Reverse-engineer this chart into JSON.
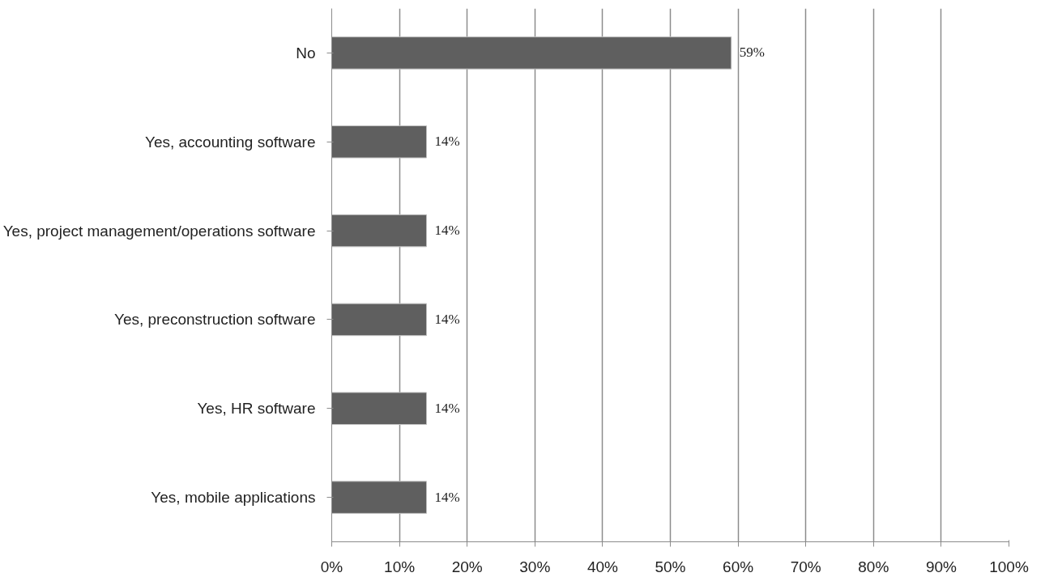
{
  "chart_data": {
    "type": "bar",
    "orientation": "horizontal",
    "categories": [
      "No",
      "Yes, accounting software",
      "Yes, project management/operations software",
      "Yes, preconstruction software",
      "Yes, HR software",
      "Yes, mobile applications"
    ],
    "values": [
      59,
      14,
      14,
      14,
      14,
      14
    ],
    "value_labels": [
      "59%",
      "14%",
      "14%",
      "14%",
      "14%",
      "14%"
    ],
    "color": "#5f5f5f",
    "xlim": [
      0,
      100
    ],
    "xticks": [
      {
        "value": 0,
        "label": "0%"
      },
      {
        "value": 10,
        "label": "10%"
      },
      {
        "value": 20,
        "label": "20%"
      },
      {
        "value": 30,
        "label": "30%"
      },
      {
        "value": 40,
        "label": "40%"
      },
      {
        "value": 50,
        "label": "50%"
      },
      {
        "value": 60,
        "label": "60%"
      },
      {
        "value": 70,
        "label": "70%"
      },
      {
        "value": 80,
        "label": "80%"
      },
      {
        "value": 90,
        "label": "90%"
      },
      {
        "value": 100,
        "label": "100%"
      }
    ],
    "grid": "x"
  }
}
